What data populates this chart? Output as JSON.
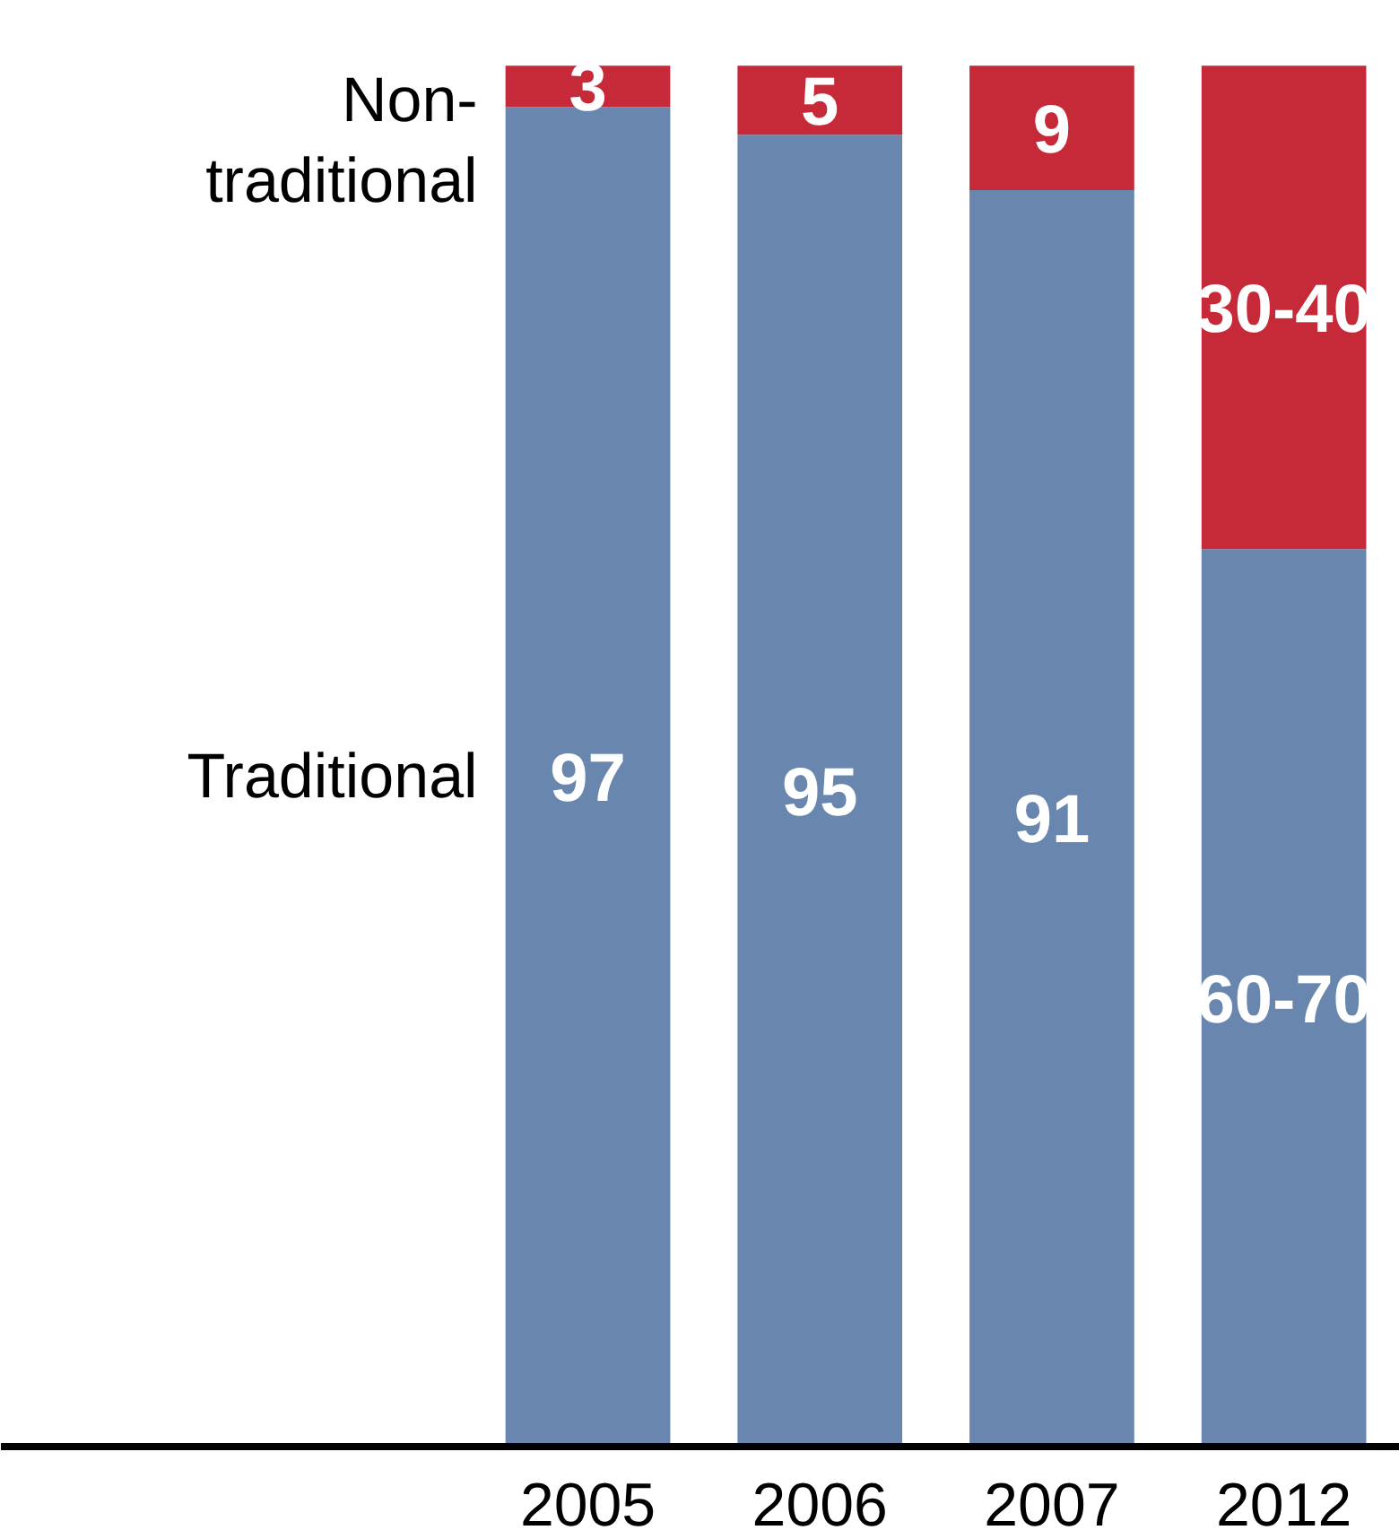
{
  "chart_data": {
    "type": "bar",
    "stacked": true,
    "categories": [
      "2005",
      "2006",
      "2007",
      "2012"
    ],
    "series": [
      {
        "name": "Traditional",
        "color": "#6886ae",
        "values": [
          97,
          95,
          91,
          65
        ],
        "value_labels": [
          "97",
          "95",
          "91",
          "60-70"
        ]
      },
      {
        "name": "Non-\ntraditional",
        "color": "#c62a38",
        "values": [
          3,
          5,
          9,
          35
        ],
        "value_labels": [
          "3",
          "5",
          "9",
          "30-40"
        ]
      }
    ],
    "grid": false
  }
}
